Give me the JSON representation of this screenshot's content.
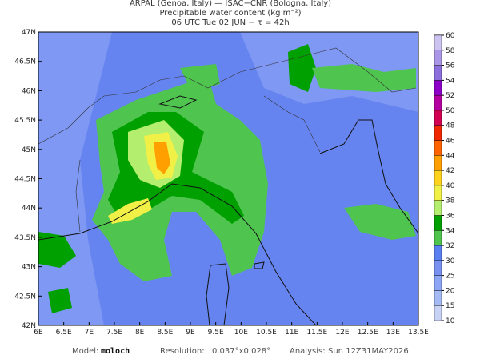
{
  "header": {
    "line1": "ARPAL (Genoa, Italy)  —  ISAC−CNR (Bologna, Italy)",
    "line2": "Precipitable water content (kg m⁻²)",
    "line3": "06 UTC Tue 02 JUN  −  τ = 42h"
  },
  "map": {
    "xlim": [
      6,
      13.5
    ],
    "ylim": [
      42,
      47
    ],
    "xticks": [
      {
        "value": 6,
        "label": "6E"
      },
      {
        "value": 6.5,
        "label": "6.5E"
      },
      {
        "value": 7,
        "label": "7E"
      },
      {
        "value": 7.5,
        "label": "7.5E"
      },
      {
        "value": 8,
        "label": "8E"
      },
      {
        "value": 8.5,
        "label": "8.5E"
      },
      {
        "value": 9,
        "label": "9E"
      },
      {
        "value": 9.5,
        "label": "9.5E"
      },
      {
        "value": 10,
        "label": "10E"
      },
      {
        "value": 10.5,
        "label": "10.5E"
      },
      {
        "value": 11,
        "label": "11E"
      },
      {
        "value": 11.5,
        "label": "11.5E"
      },
      {
        "value": 12,
        "label": "12E"
      },
      {
        "value": 12.5,
        "label": "12.5E"
      },
      {
        "value": 13,
        "label": "13E"
      },
      {
        "value": 13.5,
        "label": "13.5E"
      }
    ],
    "yticks": [
      {
        "value": 42,
        "label": "42N"
      },
      {
        "value": 42.5,
        "label": "42.5N"
      },
      {
        "value": 43,
        "label": "43N"
      },
      {
        "value": 43.5,
        "label": "43.5N"
      },
      {
        "value": 44,
        "label": "44N"
      },
      {
        "value": 44.5,
        "label": "44.5N"
      },
      {
        "value": 45,
        "label": "45N"
      },
      {
        "value": 45.5,
        "label": "45.5N"
      },
      {
        "value": 46,
        "label": "46N"
      },
      {
        "value": 46.5,
        "label": "46.5N"
      },
      {
        "value": 47,
        "label": "47N"
      }
    ]
  },
  "colorbar": {
    "levels": [
      10,
      15,
      20,
      25,
      30,
      32,
      34,
      36,
      38,
      40,
      42,
      44,
      46,
      48,
      50,
      52,
      54,
      56,
      58,
      60
    ],
    "colors": [
      "#c8d2f5",
      "#a5b9f5",
      "#8ca5f5",
      "#7891f0",
      "#5a7ff0",
      "#4fc44f",
      "#00a000",
      "#b4ee6e",
      "#f0f046",
      "#ffd21e",
      "#ffa000",
      "#ff6400",
      "#f02800",
      "#d20050",
      "#b400a0",
      "#8c00c8",
      "#8c6edc",
      "#aa96e6",
      "#cdc3f0"
    ]
  },
  "footer": {
    "model_label": "Model:",
    "model": "moloch",
    "res_label": "Resolution:",
    "res": "0.037°x0.028°",
    "analysis_label": "Analysis:",
    "analysis": "Sun 12Z31MAY2026"
  }
}
